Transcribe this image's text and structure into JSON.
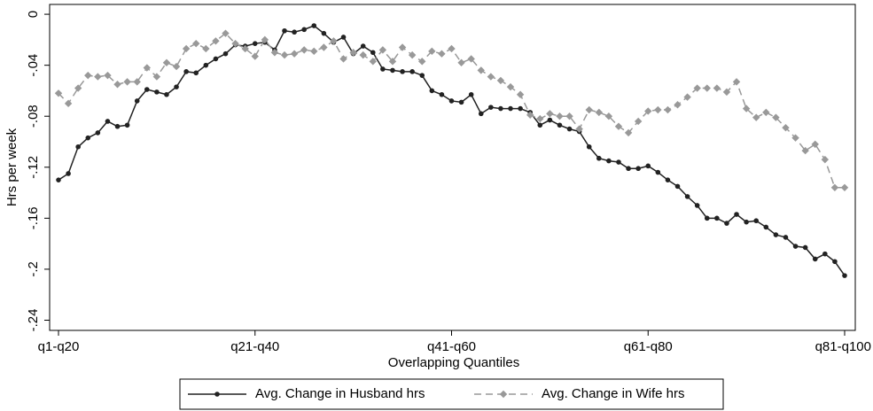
{
  "chart_data": {
    "type": "line",
    "x_label": "Overlapping Quantiles",
    "y_label": "Hrs per week",
    "categories": [
      "q1-q20",
      null,
      null,
      null,
      null,
      null,
      null,
      null,
      null,
      null,
      null,
      null,
      null,
      null,
      null,
      null,
      null,
      null,
      null,
      null,
      "q21-q40",
      null,
      null,
      null,
      null,
      null,
      null,
      null,
      null,
      null,
      null,
      null,
      null,
      null,
      null,
      null,
      null,
      null,
      null,
      null,
      "q41-q60",
      null,
      null,
      null,
      null,
      null,
      null,
      null,
      null,
      null,
      null,
      null,
      null,
      null,
      null,
      null,
      null,
      null,
      null,
      null,
      "q61-q80",
      null,
      null,
      null,
      null,
      null,
      null,
      null,
      null,
      null,
      null,
      null,
      null,
      null,
      null,
      null,
      null,
      null,
      null,
      null,
      "q81-q100"
    ],
    "series": [
      {
        "name": "Avg. Change in Husband hrs",
        "color": "#222222",
        "dash": false,
        "marker": "circle",
        "values": [
          -0.13,
          -0.125,
          -0.104,
          -0.097,
          -0.093,
          -0.084,
          -0.088,
          -0.087,
          -0.068,
          -0.059,
          -0.061,
          -0.063,
          -0.057,
          -0.045,
          -0.046,
          -0.04,
          -0.035,
          -0.031,
          -0.024,
          -0.025,
          -0.023,
          -0.022,
          -0.028,
          -0.013,
          -0.014,
          -0.012,
          -0.009,
          -0.015,
          -0.022,
          -0.018,
          -0.031,
          -0.025,
          -0.03,
          -0.043,
          -0.044,
          -0.045,
          -0.045,
          -0.048,
          -0.06,
          -0.063,
          -0.068,
          -0.069,
          -0.063,
          -0.078,
          -0.073,
          -0.074,
          -0.074,
          -0.074,
          -0.077,
          -0.087,
          -0.083,
          -0.087,
          -0.09,
          -0.092,
          -0.104,
          -0.113,
          -0.115,
          -0.116,
          -0.121,
          -0.121,
          -0.119,
          -0.124,
          -0.13,
          -0.135,
          -0.143,
          -0.15,
          -0.16,
          -0.16,
          -0.164,
          -0.157,
          -0.163,
          -0.162,
          -0.167,
          -0.173,
          -0.175,
          -0.182,
          -0.183,
          -0.192,
          -0.188,
          -0.194,
          -0.205
        ]
      },
      {
        "name": "Avg. Change in Wife hrs",
        "color": "#999999",
        "dash": true,
        "marker": "diamond",
        "values": [
          -0.062,
          -0.07,
          -0.058,
          -0.048,
          -0.049,
          -0.048,
          -0.055,
          -0.053,
          -0.053,
          -0.042,
          -0.049,
          -0.038,
          -0.041,
          -0.027,
          -0.023,
          -0.027,
          -0.021,
          -0.015,
          -0.023,
          -0.027,
          -0.033,
          -0.02,
          -0.03,
          -0.032,
          -0.031,
          -0.028,
          -0.029,
          -0.026,
          -0.021,
          -0.035,
          -0.03,
          -0.032,
          -0.037,
          -0.028,
          -0.037,
          -0.026,
          -0.032,
          -0.037,
          -0.029,
          -0.031,
          -0.027,
          -0.038,
          -0.035,
          -0.044,
          -0.049,
          -0.052,
          -0.057,
          -0.063,
          -0.079,
          -0.082,
          -0.078,
          -0.08,
          -0.08,
          -0.09,
          -0.075,
          -0.077,
          -0.08,
          -0.088,
          -0.093,
          -0.084,
          -0.076,
          -0.075,
          -0.075,
          -0.071,
          -0.065,
          -0.058,
          -0.058,
          -0.058,
          -0.061,
          -0.053,
          -0.074,
          -0.081,
          -0.077,
          -0.081,
          -0.089,
          -0.097,
          -0.107,
          -0.102,
          -0.114,
          -0.136,
          -0.136
        ]
      }
    ],
    "ylim": [
      -0.248,
      0.0077
    ],
    "yticks": [
      0,
      {
        "value": -0.04,
        "label": "-.04"
      },
      {
        "value": -0.08,
        "label": "-.08"
      },
      {
        "value": -0.12,
        "label": "-.12"
      },
      {
        "value": -0.16,
        "label": "-.16"
      },
      {
        "value": -0.2,
        "label": "-.2"
      },
      {
        "value": -0.24,
        "label": "-.24"
      }
    ],
    "grid": false,
    "legend": "bottom"
  }
}
